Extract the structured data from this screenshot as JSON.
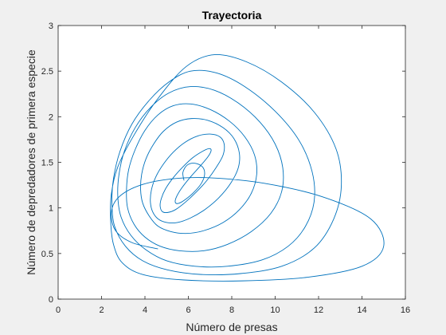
{
  "chart_data": {
    "type": "line",
    "title": "Trayectoria",
    "xlabel": "Número de presas",
    "ylabel": "Número de depredadores de primera especie",
    "xlim": [
      0,
      16
    ],
    "ylim": [
      0,
      3
    ],
    "xticks": [
      0,
      2,
      4,
      6,
      8,
      10,
      12,
      14,
      16
    ],
    "yticks": [
      0,
      0.5,
      1,
      1.5,
      2,
      2.5,
      3
    ],
    "xtick_labels": [
      "0",
      "2",
      "4",
      "6",
      "8",
      "10",
      "12",
      "14",
      "16"
    ],
    "ytick_labels": [
      "0",
      "0.5",
      "1",
      "1.5",
      "2",
      "2.5",
      "3"
    ],
    "grid": false,
    "series": [
      {
        "color": "#0072BD",
        "x": [
          4.6,
          3.4,
          2.65,
          2.45,
          2.8,
          3.8,
          5.3,
          7.0,
          9.5,
          12.2,
          14.4,
          15.0,
          14.0,
          11.5,
          8.5,
          5.8,
          3.9,
          2.95,
          2.55,
          2.42,
          2.45,
          2.75,
          3.5,
          4.6,
          5.9,
          7.2,
          8.7,
          10.3,
          11.8,
          12.8,
          13.05,
          12.7,
          11.8,
          10.3,
          8.4,
          6.6,
          5.05,
          3.9,
          3.1,
          2.6,
          2.48,
          2.55,
          2.85,
          3.4,
          4.2,
          5.1,
          6.1,
          7.3,
          8.6,
          10.0,
          11.1,
          11.7,
          11.8,
          11.4,
          10.6,
          9.4,
          7.8,
          6.3,
          5.0,
          4.05,
          3.35,
          2.9,
          2.75,
          2.8,
          3.05,
          3.55,
          4.25,
          5.1,
          6.1,
          7.2,
          8.3,
          9.3,
          10.0,
          10.35,
          10.3,
          9.8,
          8.9,
          7.8,
          6.7,
          5.6,
          4.7,
          4.0,
          3.5,
          3.2,
          3.15,
          3.25,
          3.55,
          4.0,
          4.6,
          5.3,
          6.1,
          7.0,
          7.9,
          8.6,
          9.05,
          9.15,
          8.9,
          8.35,
          7.6,
          6.7,
          5.9,
          5.2,
          4.6,
          4.2,
          3.9,
          3.8,
          3.85,
          4.05,
          4.4,
          4.85,
          5.45,
          6.15,
          6.9,
          7.6,
          8.1,
          8.35,
          8.3,
          7.95,
          7.4,
          6.75,
          6.1,
          5.5,
          5.0,
          4.6,
          4.35,
          4.25,
          4.3,
          4.5,
          4.85,
          5.3,
          5.85,
          6.45,
          7.0,
          7.45,
          7.65,
          7.6,
          7.3,
          6.85,
          6.35,
          5.85,
          5.4,
          5.05,
          4.8,
          4.7,
          4.75,
          4.95,
          5.3,
          5.75,
          6.2,
          6.65,
          6.95,
          7.05,
          6.9,
          6.55,
          6.1,
          5.7,
          5.45,
          5.4,
          5.55,
          5.85,
          6.25,
          6.6,
          6.75,
          6.65,
          6.3,
          5.95,
          5.75,
          5.8
        ],
        "y": [
          0.55,
          0.62,
          0.75,
          0.95,
          1.12,
          1.25,
          1.32,
          1.33,
          1.27,
          1.12,
          0.88,
          0.58,
          0.36,
          0.24,
          0.2,
          0.21,
          0.27,
          0.4,
          0.6,
          0.86,
          1.15,
          1.45,
          1.8,
          2.2,
          2.55,
          2.68,
          2.6,
          2.38,
          2.05,
          1.65,
          1.25,
          0.88,
          0.56,
          0.36,
          0.28,
          0.27,
          0.32,
          0.42,
          0.58,
          0.8,
          1.05,
          1.32,
          1.62,
          1.92,
          2.18,
          2.38,
          2.5,
          2.48,
          2.33,
          2.06,
          1.74,
          1.4,
          1.08,
          0.8,
          0.58,
          0.43,
          0.36,
          0.36,
          0.42,
          0.54,
          0.7,
          0.9,
          1.12,
          1.36,
          1.62,
          1.88,
          2.1,
          2.26,
          2.33,
          2.29,
          2.15,
          1.94,
          1.7,
          1.44,
          1.18,
          0.94,
          0.74,
          0.6,
          0.53,
          0.53,
          0.58,
          0.68,
          0.82,
          1.0,
          1.2,
          1.42,
          1.64,
          1.85,
          2.02,
          2.12,
          2.14,
          2.08,
          1.95,
          1.78,
          1.58,
          1.37,
          1.16,
          0.98,
          0.84,
          0.75,
          0.72,
          0.74,
          0.8,
          0.91,
          1.05,
          1.2,
          1.37,
          1.54,
          1.7,
          1.84,
          1.94,
          1.98,
          1.96,
          1.88,
          1.76,
          1.6,
          1.44,
          1.27,
          1.11,
          0.98,
          0.89,
          0.84,
          0.84,
          0.88,
          0.96,
          1.07,
          1.2,
          1.34,
          1.48,
          1.61,
          1.72,
          1.79,
          1.81,
          1.78,
          1.7,
          1.58,
          1.45,
          1.3,
          1.17,
          1.06,
          0.98,
          0.95,
          0.96,
          1.02,
          1.1,
          1.21,
          1.33,
          1.45,
          1.55,
          1.62,
          1.65,
          1.63,
          1.56,
          1.46,
          1.34,
          1.22,
          1.12,
          1.06,
          1.05,
          1.09,
          1.17,
          1.27,
          1.37,
          1.45,
          1.49,
          1.47,
          1.39,
          1.3
        ]
      }
    ]
  }
}
